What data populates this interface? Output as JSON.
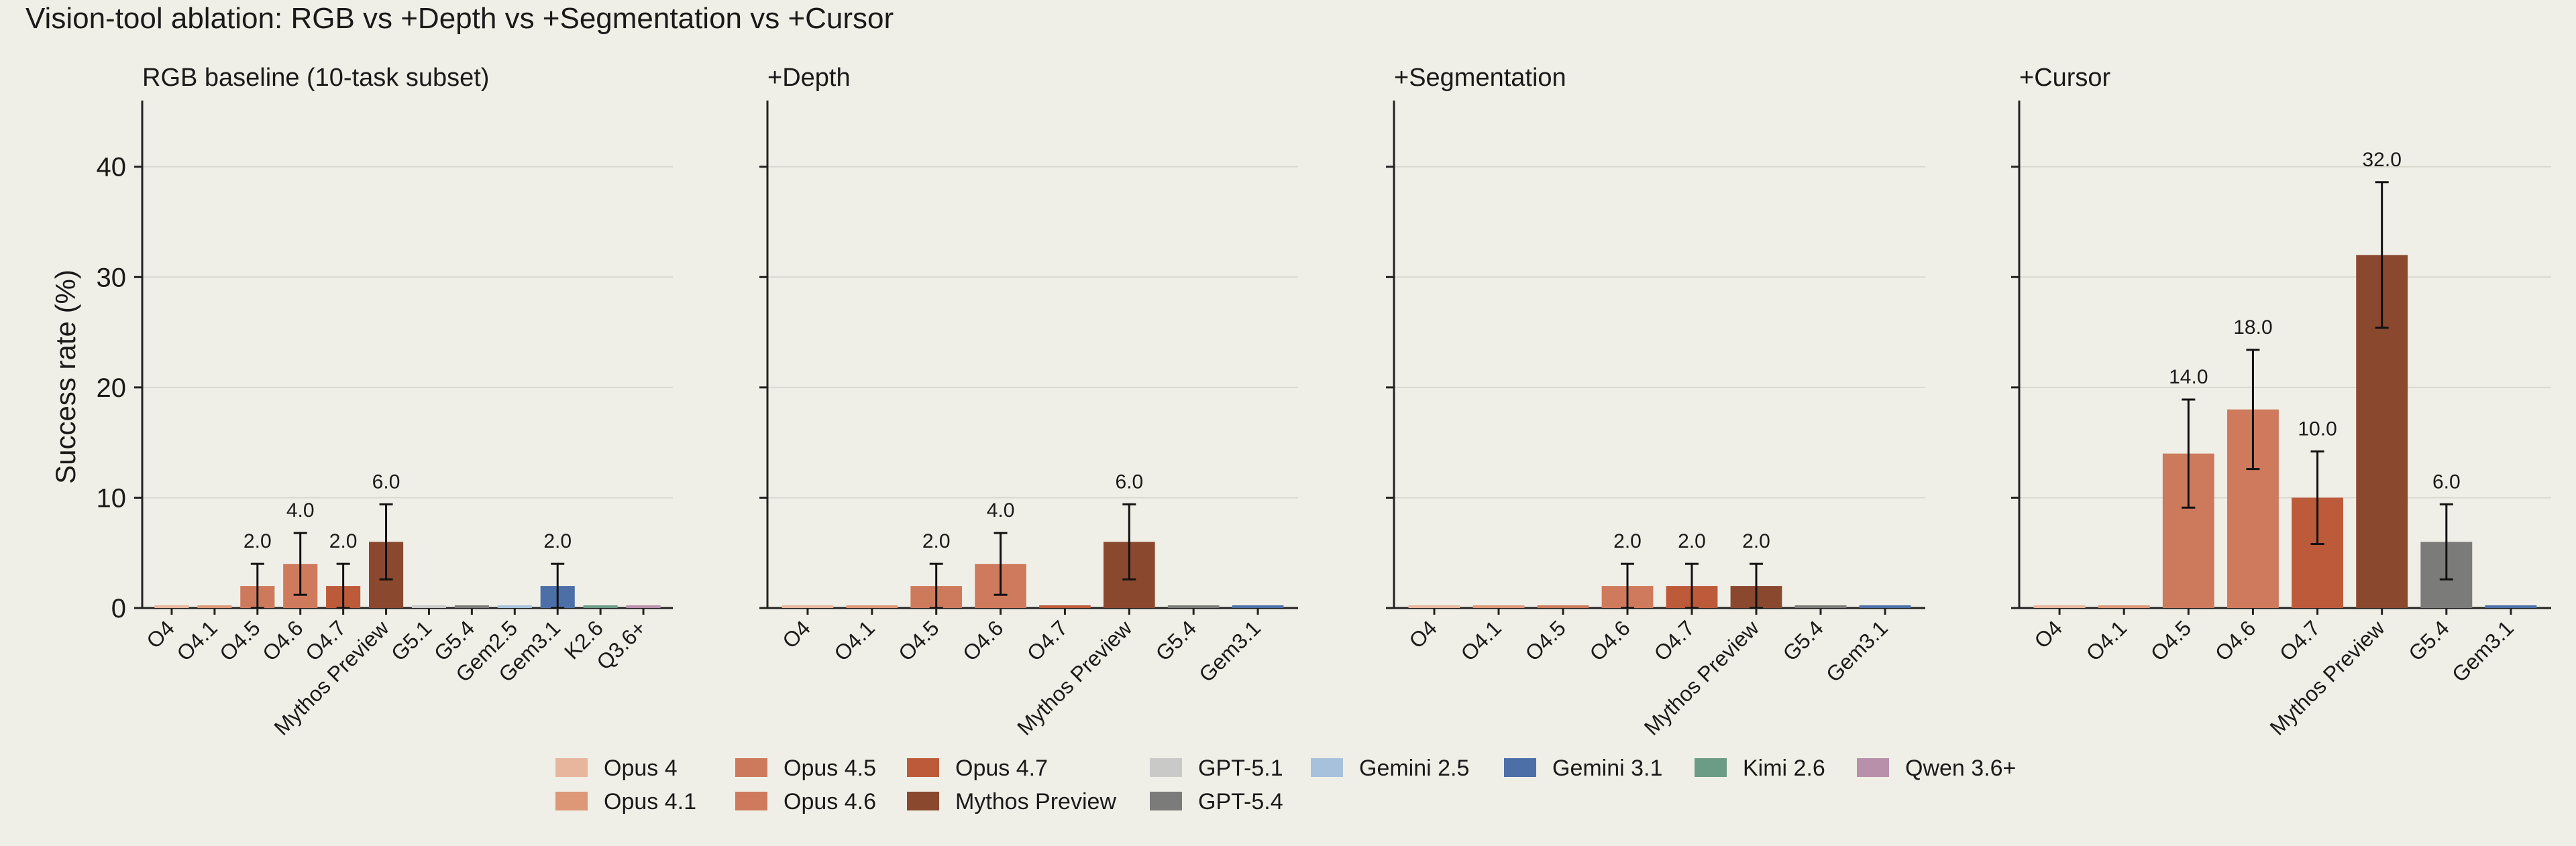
{
  "title": "Vision-tool ablation: RGB vs +Depth vs +Segmentation vs +Cursor",
  "ylabel": "Success rate (%)",
  "yticks": [
    0,
    10,
    20,
    30,
    40
  ],
  "ylim": [
    0,
    46
  ],
  "colors": {
    "Opus 4": "#e8b69c",
    "Opus 4.1": "#dd9877",
    "Opus 4.5": "#cd7a5c",
    "Opus 4.6": "#cf7a5c",
    "Opus 4.7": "#bd5a3a",
    "Mythos Preview": "#8a482f",
    "GPT-5.1": "#c9cac8",
    "GPT-5.4": "#7b7b79",
    "Gemini 2.5": "#a7c1dc",
    "Gemini 3.1": "#4c6fa8",
    "Kimi 2.6": "#6d9c86",
    "Qwen 3.6+": "#b890aa"
  },
  "legend": [
    "Opus 4",
    "Opus 4.1",
    "Opus 4.5",
    "Opus 4.6",
    "Opus 4.7",
    "Mythos Preview",
    "GPT-5.1",
    "GPT-5.4",
    "Gemini 2.5",
    "Gemini 3.1",
    "Kimi 2.6",
    "Qwen 3.6+"
  ],
  "chart_data": [
    {
      "type": "bar",
      "title": "RGB baseline (10-task subset)",
      "categories": [
        "O4",
        "O4.1",
        "O4.5",
        "O4.6",
        "O4.7",
        "Mythos Preview",
        "G5.1",
        "G5.4",
        "Gem2.5",
        "Gem3.1",
        "K2.6",
        "Q3.6+"
      ],
      "series_of": [
        "Opus 4",
        "Opus 4.1",
        "Opus 4.5",
        "Opus 4.6",
        "Opus 4.7",
        "Mythos Preview",
        "GPT-5.1",
        "GPT-5.4",
        "Gemini 2.5",
        "Gemini 3.1",
        "Kimi 2.6",
        "Qwen 3.6+"
      ],
      "values": [
        0,
        0,
        2,
        4,
        2,
        6,
        0,
        0,
        0,
        2,
        0,
        0
      ],
      "err": [
        0,
        0,
        2,
        2.8,
        2,
        3.4,
        0,
        0,
        0,
        2,
        0,
        0
      ],
      "labels": [
        "",
        "",
        "2.0",
        "4.0",
        "2.0",
        "6.0",
        "",
        "",
        "",
        "2.0",
        "",
        ""
      ]
    },
    {
      "type": "bar",
      "title": "+Depth",
      "categories": [
        "O4",
        "O4.1",
        "O4.5",
        "O4.6",
        "O4.7",
        "Mythos Preview",
        "G5.4",
        "Gem3.1"
      ],
      "series_of": [
        "Opus 4",
        "Opus 4.1",
        "Opus 4.5",
        "Opus 4.6",
        "Opus 4.7",
        "Mythos Preview",
        "GPT-5.4",
        "Gemini 3.1"
      ],
      "values": [
        0,
        0,
        2,
        4,
        0,
        6,
        0,
        0
      ],
      "err": [
        0,
        0,
        2,
        2.8,
        0,
        3.4,
        0,
        0
      ],
      "labels": [
        "",
        "",
        "2.0",
        "4.0",
        "",
        "6.0",
        "",
        ""
      ]
    },
    {
      "type": "bar",
      "title": "+Segmentation",
      "categories": [
        "O4",
        "O4.1",
        "O4.5",
        "O4.6",
        "O4.7",
        "Mythos Preview",
        "G5.4",
        "Gem3.1"
      ],
      "series_of": [
        "Opus 4",
        "Opus 4.1",
        "Opus 4.5",
        "Opus 4.6",
        "Opus 4.7",
        "Mythos Preview",
        "GPT-5.4",
        "Gemini 3.1"
      ],
      "values": [
        0,
        0,
        0,
        2,
        2,
        2,
        0,
        0
      ],
      "err": [
        0,
        0,
        0,
        2,
        2,
        2,
        0,
        0
      ],
      "labels": [
        "",
        "",
        "",
        "2.0",
        "2.0",
        "2.0",
        "",
        ""
      ]
    },
    {
      "type": "bar",
      "title": "+Cursor",
      "categories": [
        "O4",
        "O4.1",
        "O4.5",
        "O4.6",
        "O4.7",
        "Mythos Preview",
        "G5.4",
        "Gem3.1"
      ],
      "series_of": [
        "Opus 4",
        "Opus 4.1",
        "Opus 4.5",
        "Opus 4.6",
        "Opus 4.7",
        "Mythos Preview",
        "GPT-5.4",
        "Gemini 3.1"
      ],
      "values": [
        0,
        0,
        14,
        18,
        10,
        32,
        6,
        0
      ],
      "err": [
        0,
        0,
        4.9,
        5.4,
        4.2,
        6.6,
        3.4,
        0
      ],
      "labels": [
        "",
        "",
        "14.0",
        "18.0",
        "10.0",
        "32.0",
        "6.0",
        ""
      ]
    }
  ]
}
